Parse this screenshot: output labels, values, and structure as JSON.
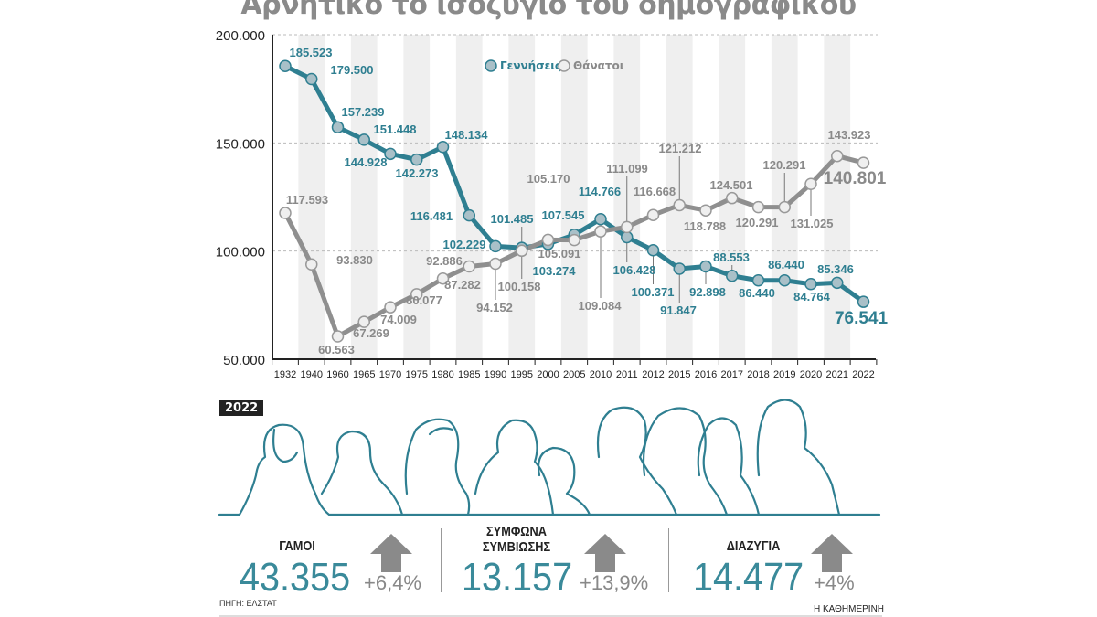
{
  "chart_data": {
    "type": "line",
    "title": "Αρνητικό το ισοζύγιο του δημογραφικού",
    "categories": [
      "1932",
      "1940",
      "1960",
      "1965",
      "1970",
      "1975",
      "1980",
      "1985",
      "1990",
      "1995",
      "2000",
      "2005",
      "2010",
      "2011",
      "2012",
      "2015",
      "2016",
      "2017",
      "2018",
      "2019",
      "2020",
      "2021",
      "2022"
    ],
    "ylim": [
      50000,
      200000
    ],
    "yticks": [
      {
        "v": 200000,
        "label": "200.000"
      },
      {
        "v": 150000,
        "label": "150.000"
      },
      {
        "v": 100000,
        "label": "100.000"
      },
      {
        "v": 50000,
        "label": "50.000"
      }
    ],
    "grid": true,
    "legend_position": "top-center",
    "series": [
      {
        "name": "Γεννήσεις",
        "color": "#2f7f91",
        "values": [
          185523,
          179500,
          157239,
          151448,
          144928,
          142273,
          148134,
          116481,
          102229,
          101485,
          103274,
          107545,
          114766,
          106428,
          100371,
          91847,
          92898,
          88553,
          86440,
          86440,
          84764,
          85346,
          76541
        ],
        "labels": [
          "185.523",
          "179.500",
          "157.239",
          "151.448",
          "144.928",
          "142.273",
          "148.134",
          "116.481",
          "102.229",
          "101.485",
          "103.274",
          "107.545",
          "114.766",
          "106.428",
          "100.371",
          "91.847",
          "92.898",
          "88.553",
          "86.440",
          "86.440",
          "84.764",
          "85.346",
          "76.541"
        ]
      },
      {
        "name": "Θάνατοι",
        "color": "#8f8f8f",
        "values": [
          117593,
          93830,
          60563,
          67269,
          74009,
          80077,
          87282,
          92886,
          94152,
          100158,
          105170,
          105091,
          109084,
          111099,
          116668,
          121212,
          118788,
          124501,
          120291,
          120291,
          131025,
          143923,
          140801
        ],
        "labels": [
          "117.593",
          "93.830",
          "60.563",
          "67.269",
          "74.009",
          "80.077",
          "87.282",
          "92.886",
          "94.152",
          "100.158",
          "105.170",
          "105.091",
          "109.084",
          "111.099",
          "116.668",
          "121.212",
          "118.788",
          "124.501",
          "120.291",
          "120.291",
          "131.025",
          "143.923",
          "140.801"
        ]
      }
    ]
  },
  "year_badge": "2022",
  "stats": [
    {
      "label_lines": [
        "ΓΑΜΟΙ"
      ],
      "value": "43.355",
      "change": "+6,4%"
    },
    {
      "label_lines": [
        "ΣΥΜΦΩΝΑ",
        "ΣΥΜΒΙΩΣΗΣ"
      ],
      "value": "13.157",
      "change": "+13,9%"
    },
    {
      "label_lines": [
        "ΔΙΑΖΥΓΙΑ"
      ],
      "value": "14.477",
      "change": "+4%"
    }
  ],
  "source": "ΠΗΓΗ: ΕΛΣΤΑΤ",
  "brand": "Η ΚΑΘΗΜΕΡΙΝΗ",
  "colors": {
    "births": "#2f7f91",
    "deaths": "#8f8f8f",
    "arrow": "#8a8a8a"
  }
}
